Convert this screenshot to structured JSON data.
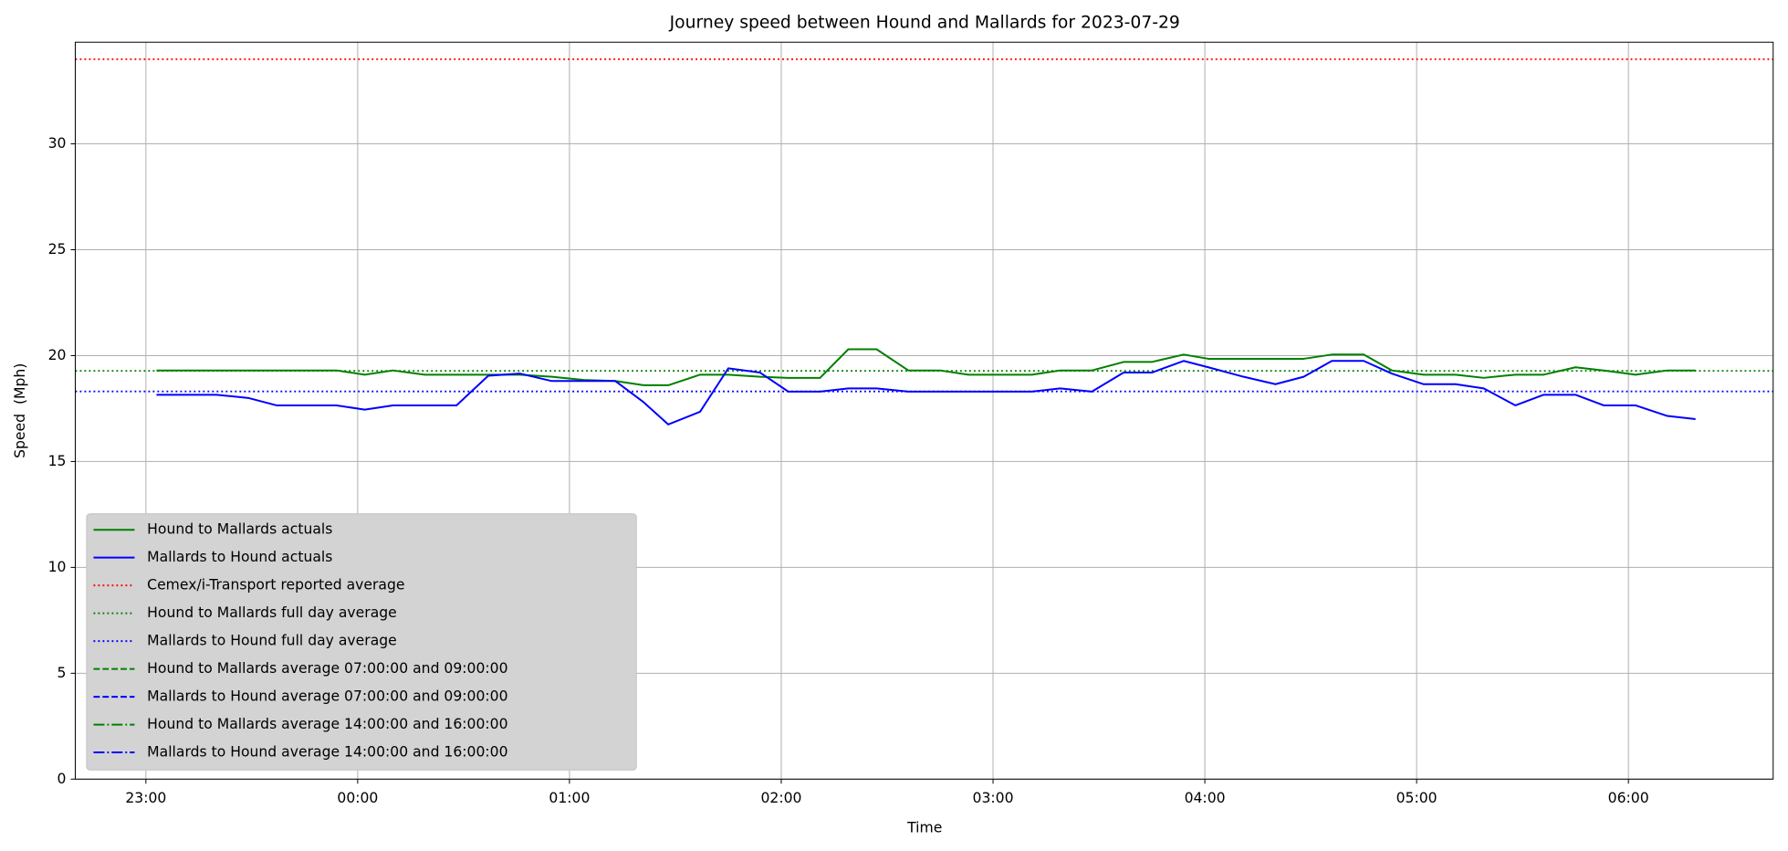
{
  "chart_data": {
    "type": "line",
    "title": "Journey speed between Hound and Mallards for 2023-07-29",
    "x_label": "Time",
    "y_label": "Speed  (Mph)",
    "x": [
      "23:03",
      "23:11",
      "23:20",
      "23:29",
      "23:37",
      "23:46",
      "23:54",
      "00:02",
      "00:10",
      "00:19",
      "00:28",
      "00:37",
      "00:46",
      "00:55",
      "01:04",
      "01:13",
      "01:21",
      "01:28",
      "01:37",
      "01:45",
      "01:54",
      "02:02",
      "02:11",
      "02:19",
      "02:27",
      "02:36",
      "02:45",
      "02:53",
      "03:02",
      "03:11",
      "03:19",
      "03:28",
      "03:37",
      "03:45",
      "03:54",
      "04:01",
      "04:11",
      "04:20",
      "04:28",
      "04:36",
      "04:45",
      "04:53",
      "05:02",
      "05:11",
      "05:19",
      "05:28",
      "05:36",
      "05:45",
      "05:53",
      "06:02",
      "06:11",
      "06:19"
    ],
    "series": [
      {
        "name": "Hound to Mallards actuals",
        "color": "#008000",
        "style": "solid",
        "values": [
          19.3,
          19.3,
          19.3,
          19.3,
          19.3,
          19.3,
          19.3,
          19.1,
          19.3,
          19.1,
          19.1,
          19.1,
          19.1,
          19.0,
          18.85,
          18.8,
          18.6,
          18.6,
          19.1,
          19.1,
          19.0,
          18.95,
          18.95,
          20.3,
          20.3,
          19.3,
          19.3,
          19.1,
          19.1,
          19.1,
          19.3,
          19.3,
          19.7,
          19.7,
          20.05,
          19.85,
          19.85,
          19.85,
          19.85,
          20.05,
          20.05,
          19.3,
          19.1,
          19.1,
          18.95,
          19.1,
          19.1,
          19.45,
          19.3,
          19.1,
          19.3,
          19.3
        ]
      },
      {
        "name": "Mallards to Hound actuals",
        "color": "#0000ff",
        "style": "solid",
        "values": [
          18.15,
          18.15,
          18.15,
          18.0,
          17.65,
          17.65,
          17.65,
          17.45,
          17.65,
          17.65,
          17.65,
          19.05,
          19.15,
          18.8,
          18.8,
          18.8,
          17.8,
          16.75,
          17.35,
          19.4,
          19.2,
          18.3,
          18.3,
          18.45,
          18.45,
          18.3,
          18.3,
          18.3,
          18.3,
          18.3,
          18.45,
          18.3,
          19.2,
          19.2,
          19.75,
          19.45,
          19.0,
          18.65,
          19.0,
          19.75,
          19.75,
          19.15,
          18.65,
          18.65,
          18.45,
          17.65,
          18.15,
          18.15,
          17.65,
          17.65,
          17.15,
          17.0
        ]
      }
    ],
    "lines": [
      {
        "name": "Cemex/i-Transport reported average",
        "color": "#ff0000",
        "style": "dotted",
        "value": 34.0
      },
      {
        "name": "Hound to Mallards full day average",
        "color": "#008000",
        "style": "dotted",
        "value": 19.28
      },
      {
        "name": "Mallards to Hound full day average",
        "color": "#0000ff",
        "style": "dotted",
        "value": 18.31
      },
      {
        "name": "Hound to Mallards average 07:00:00 and 09:00:00",
        "color": "#008000",
        "style": "dashed",
        "value": null
      },
      {
        "name": "Mallards to Hound average 07:00:00 and 09:00:00",
        "color": "#0000ff",
        "style": "dashed",
        "value": null
      },
      {
        "name": "Hound to Mallards average 14:00:00 and 16:00:00",
        "color": "#008000",
        "style": "dashdot",
        "value": null
      },
      {
        "name": "Mallards to Hound average 14:00:00 and 16:00:00",
        "color": "#0000ff",
        "style": "dashdot",
        "value": null
      }
    ],
    "xlim": [
      "22:40",
      "06:41"
    ],
    "xticks": [
      "23:00",
      "00:00",
      "01:00",
      "02:00",
      "03:00",
      "04:00",
      "05:00",
      "06:00"
    ],
    "ylim": [
      0,
      34.8
    ],
    "yticks": [
      0,
      5,
      10,
      15,
      20,
      25,
      30
    ],
    "grid": true,
    "legend": "lower left"
  }
}
